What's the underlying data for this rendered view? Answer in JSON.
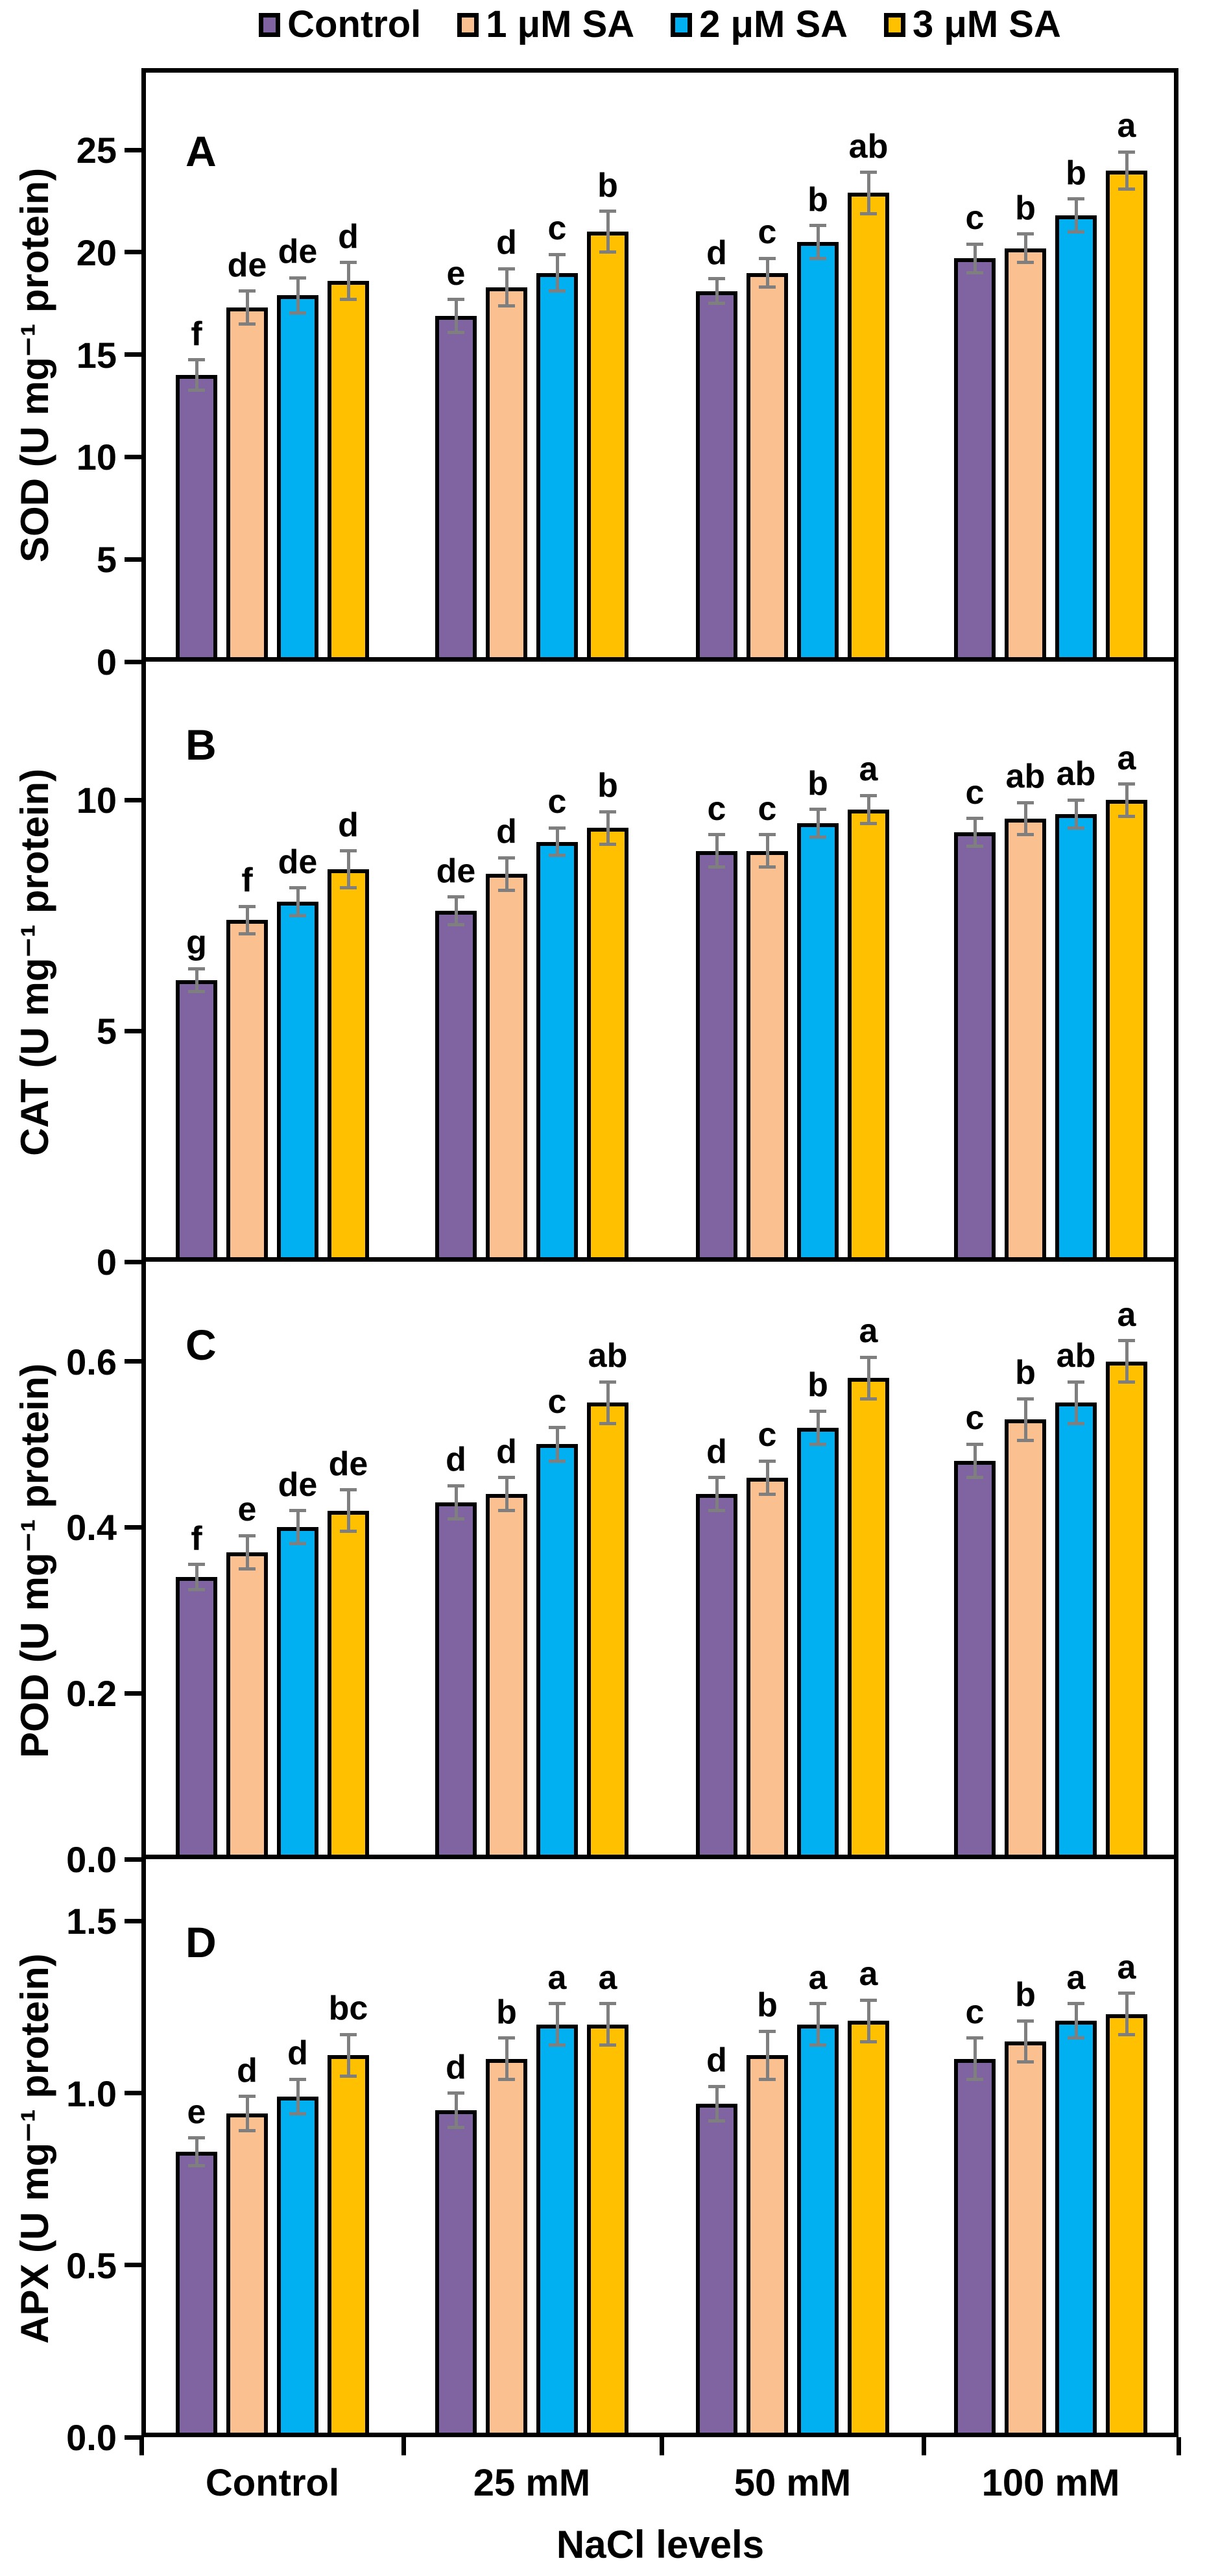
{
  "figure": {
    "x_axis_title": "NaCl levels",
    "categories": [
      "Control",
      "25 mM",
      "50 mM",
      "100 mM"
    ],
    "legend": [
      {
        "label": "Control",
        "color": "#8064A2"
      },
      {
        "label": "1 μM SA",
        "color": "#FAC090"
      },
      {
        "label": "2 μM SA",
        "color": "#00B0F0"
      },
      {
        "label": "3 μM SA",
        "color": "#FFC000"
      }
    ],
    "error_bar_color": "#7F7F7F",
    "bar_border_color": "#000000"
  },
  "chart_data": [
    {
      "type": "bar",
      "panel_label": "A",
      "ylabel": "SOD (U mg⁻¹ protein)",
      "ylim": [
        0,
        29
      ],
      "yticks": [
        0,
        5,
        10,
        15,
        20,
        25
      ],
      "ytick_labels": [
        "0",
        "5",
        "10",
        "15",
        "20",
        "25"
      ],
      "categories": [
        "Control",
        "25 mM",
        "50 mM",
        "100 mM"
      ],
      "series": [
        {
          "name": "Control",
          "values": [
            14.0,
            16.9,
            18.1,
            19.7
          ],
          "errors": [
            0.75,
            0.8,
            0.6,
            0.7
          ],
          "letters": [
            "f",
            "e",
            "d",
            "c"
          ]
        },
        {
          "name": "1 μM SA",
          "values": [
            17.3,
            18.3,
            19.0,
            20.2
          ],
          "errors": [
            0.8,
            0.9,
            0.7,
            0.7
          ],
          "letters": [
            "de",
            "d",
            "c",
            "b"
          ]
        },
        {
          "name": "2 μM SA",
          "values": [
            17.9,
            19.0,
            20.5,
            21.8
          ],
          "errors": [
            0.85,
            0.9,
            0.8,
            0.8
          ],
          "letters": [
            "de",
            "c",
            "b",
            "b"
          ]
        },
        {
          "name": "3 μM SA",
          "values": [
            18.6,
            21.0,
            22.9,
            24.0
          ],
          "errors": [
            0.9,
            1.0,
            1.0,
            0.9
          ],
          "letters": [
            "d",
            "b",
            "ab",
            "a"
          ]
        }
      ]
    },
    {
      "type": "bar",
      "panel_label": "B",
      "ylabel": "CAT (U mg⁻¹ protein)",
      "ylim": [
        0,
        13
      ],
      "yticks": [
        0,
        5,
        10
      ],
      "ytick_labels": [
        "0",
        "5",
        "10"
      ],
      "categories": [
        "Control",
        "25 mM",
        "50 mM",
        "100 mM"
      ],
      "series": [
        {
          "name": "Control",
          "values": [
            6.1,
            7.6,
            8.9,
            9.3
          ],
          "errors": [
            0.25,
            0.3,
            0.35,
            0.3
          ],
          "letters": [
            "g",
            "de",
            "c",
            "c"
          ]
        },
        {
          "name": "1 μM SA",
          "values": [
            7.4,
            8.4,
            8.9,
            9.6
          ],
          "errors": [
            0.3,
            0.35,
            0.35,
            0.35
          ],
          "letters": [
            "f",
            "d",
            "c",
            "ab"
          ]
        },
        {
          "name": "2 μM SA",
          "values": [
            7.8,
            9.1,
            9.5,
            9.7
          ],
          "errors": [
            0.3,
            0.3,
            0.3,
            0.3
          ],
          "letters": [
            "de",
            "c",
            "b",
            "ab"
          ]
        },
        {
          "name": "3 μM SA",
          "values": [
            8.5,
            9.4,
            9.8,
            10.0
          ],
          "errors": [
            0.4,
            0.35,
            0.3,
            0.35
          ],
          "letters": [
            "d",
            "b",
            "a",
            "a"
          ]
        }
      ]
    },
    {
      "type": "bar",
      "panel_label": "C",
      "ylabel": "POD (U mg⁻¹ protein)",
      "ylim": [
        0,
        0.72
      ],
      "yticks": [
        0,
        0.2,
        0.4,
        0.6
      ],
      "ytick_labels": [
        "0.0",
        "0.2",
        "0.4",
        "0.6"
      ],
      "categories": [
        "Control",
        "25 mM",
        "50 mM",
        "100 mM"
      ],
      "series": [
        {
          "name": "Control",
          "values": [
            0.34,
            0.43,
            0.44,
            0.48
          ],
          "errors": [
            0.015,
            0.02,
            0.02,
            0.02
          ],
          "letters": [
            "f",
            "d",
            "d",
            "c"
          ]
        },
        {
          "name": "1 μM SA",
          "values": [
            0.37,
            0.44,
            0.46,
            0.53
          ],
          "errors": [
            0.02,
            0.02,
            0.02,
            0.025
          ],
          "letters": [
            "e",
            "d",
            "c",
            "b"
          ]
        },
        {
          "name": "2 μM SA",
          "values": [
            0.4,
            0.5,
            0.52,
            0.55
          ],
          "errors": [
            0.02,
            0.02,
            0.02,
            0.025
          ],
          "letters": [
            "de",
            "c",
            "b",
            "ab"
          ]
        },
        {
          "name": "3 μM SA",
          "values": [
            0.42,
            0.55,
            0.58,
            0.6
          ],
          "errors": [
            0.025,
            0.025,
            0.025,
            0.025
          ],
          "letters": [
            "de",
            "ab",
            "a",
            "a"
          ]
        }
      ]
    },
    {
      "type": "bar",
      "panel_label": "D",
      "ylabel": "APX (U mg⁻¹ protein)",
      "ylim": [
        0,
        1.68
      ],
      "yticks": [
        0,
        0.5,
        1.0,
        1.5
      ],
      "ytick_labels": [
        "0.0",
        "0.5",
        "1.0",
        "1.5"
      ],
      "categories": [
        "Control",
        "25 mM",
        "50 mM",
        "100 mM"
      ],
      "series": [
        {
          "name": "Control",
          "values": [
            0.83,
            0.95,
            0.97,
            1.1
          ],
          "errors": [
            0.04,
            0.05,
            0.05,
            0.06
          ],
          "letters": [
            "e",
            "d",
            "d",
            "c"
          ]
        },
        {
          "name": "1 μM SA",
          "values": [
            0.94,
            1.1,
            1.11,
            1.15
          ],
          "errors": [
            0.05,
            0.06,
            0.07,
            0.06
          ],
          "letters": [
            "d",
            "b",
            "b",
            "b"
          ]
        },
        {
          "name": "2 μM SA",
          "values": [
            0.99,
            1.2,
            1.2,
            1.21
          ],
          "errors": [
            0.05,
            0.06,
            0.06,
            0.05
          ],
          "letters": [
            "d",
            "a",
            "a",
            "a"
          ]
        },
        {
          "name": "3 μM SA",
          "values": [
            1.11,
            1.2,
            1.21,
            1.23
          ],
          "errors": [
            0.06,
            0.06,
            0.06,
            0.06
          ],
          "letters": [
            "bc",
            "a",
            "a",
            "a"
          ]
        }
      ]
    }
  ]
}
